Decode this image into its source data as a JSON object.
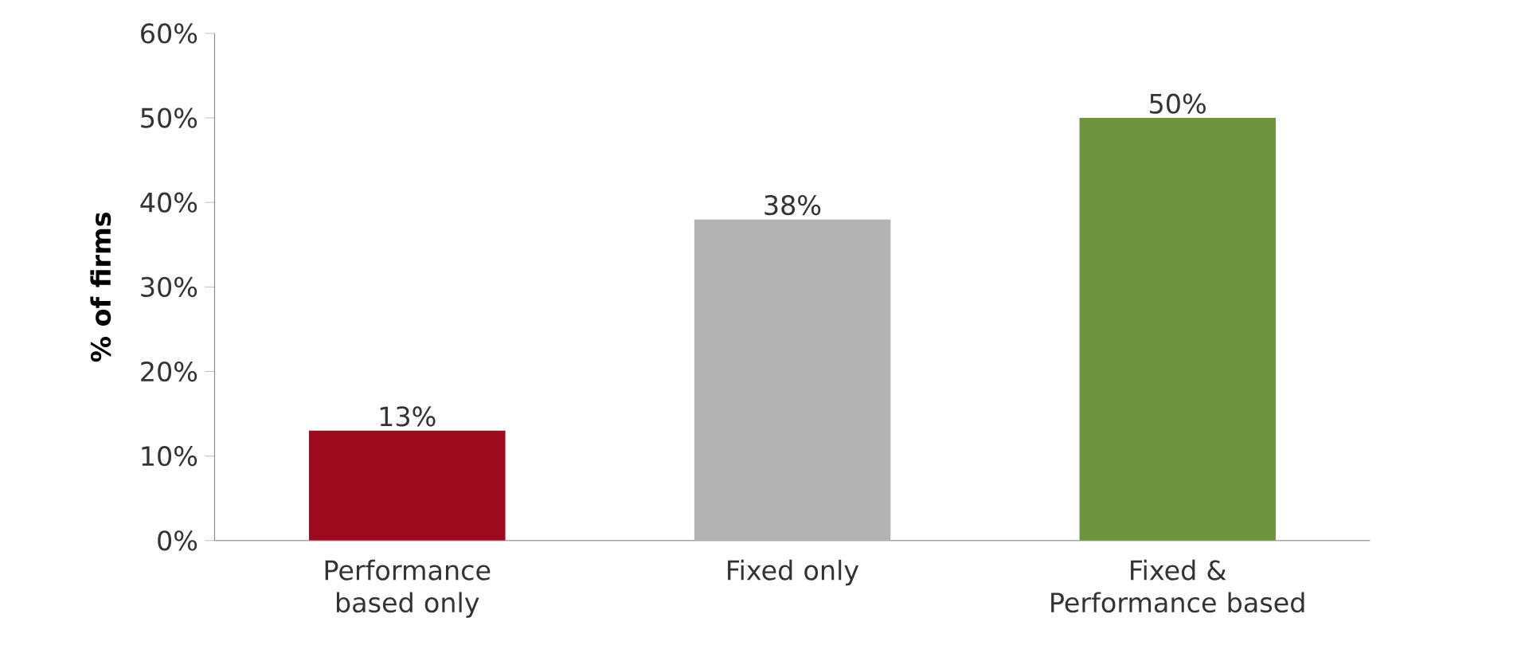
{
  "chart_data": {
    "type": "bar",
    "ylabel": "% of firms",
    "categories": [
      "Performance based only",
      "Fixed only",
      "Fixed & Performance based"
    ],
    "values": [
      13,
      38,
      50
    ],
    "colors": [
      "#9e0a1e",
      "#b3b3b3",
      "#6e9440"
    ],
    "value_labels": [
      "13%",
      "38%",
      "50%"
    ],
    "ylim": [
      0,
      60
    ],
    "yticks": [
      {
        "value": 0,
        "label": "0%"
      },
      {
        "value": 10,
        "label": "10%"
      },
      {
        "value": 20,
        "label": "20%"
      },
      {
        "value": 30,
        "label": "30%"
      },
      {
        "value": 40,
        "label": "40%"
      },
      {
        "value": 50,
        "label": "50%"
      },
      {
        "value": 60,
        "label": "60%"
      }
    ]
  }
}
